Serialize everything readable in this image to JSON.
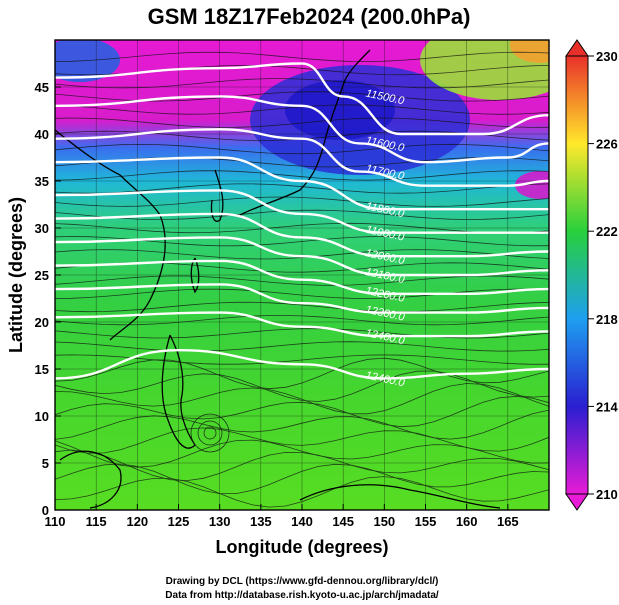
{
  "title": "GSM 18Z17Feb2024 (200.0hPa)",
  "xlabel": "Longitude (degrees)",
  "ylabel": "Latitude (degrees)",
  "credits": [
    "Drawing by DCL (https://www.gfd-dennou.org/library/dcl/)",
    "Data from http://database.rish.kyoto-u.ac.jp/arch/jmadata/"
  ],
  "map": {
    "lon_range": [
      110,
      170
    ],
    "lat_range": [
      0,
      50
    ],
    "lon_ticks": [
      "110",
      "115",
      "120",
      "125",
      "130",
      "135",
      "140",
      "145",
      "150",
      "155",
      "160",
      "165"
    ],
    "lat_ticks": [
      "0",
      "5",
      "10",
      "15",
      "20",
      "25",
      "30",
      "35",
      "40",
      "45"
    ]
  },
  "colorbar": {
    "ticks": [
      "210",
      "214",
      "218",
      "222",
      "226",
      "230"
    ],
    "colors": [
      "#e81bd6",
      "#2a1fd1",
      "#1e9ff0",
      "#28d03c",
      "#ffe82a",
      "#e8302a"
    ]
  },
  "contours": {
    "color": "#ffffff",
    "labels": [
      "11500.0",
      "11600.0",
      "11700.0",
      "11800.0",
      "11900.0",
      "12000.0",
      "12100.0",
      "12200.0",
      "12300.0",
      "12400.0",
      "12400.0"
    ]
  }
}
